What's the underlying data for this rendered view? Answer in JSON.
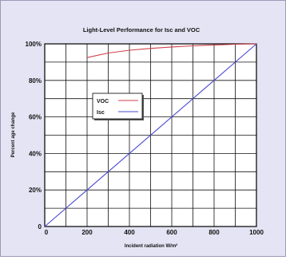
{
  "chart_data": {
    "type": "line",
    "title": "Light-Level Performance for Isc and VOC",
    "xlabel": "Incident radiation W/m²",
    "ylabel": "Percent age change",
    "xlim": [
      0,
      1000
    ],
    "ylim": [
      0,
      100
    ],
    "x_ticks": [
      0,
      200,
      400,
      600,
      800,
      1000
    ],
    "x_tick_labels": [
      "0",
      "200",
      "400",
      "600",
      "800",
      "1000"
    ],
    "y_ticks": [
      0,
      20,
      40,
      60,
      80,
      100
    ],
    "y_tick_labels": [
      "0",
      "20%",
      "40%",
      "60%",
      "80%",
      "100%"
    ],
    "grid": true,
    "grid_step_x": 100,
    "grid_step_y": 10,
    "legend_position": "upper-left",
    "series": [
      {
        "name": "VOC",
        "color": "#d0404a",
        "x": [
          200,
          300,
          400,
          500,
          600,
          700,
          800,
          900,
          1000
        ],
        "values": [
          92.5,
          95,
          96.5,
          97.5,
          98.3,
          98.9,
          99.4,
          99.8,
          100
        ]
      },
      {
        "name": "Isc",
        "color": "#4a4ad0",
        "x": [
          0,
          1000
        ],
        "values": [
          0,
          100
        ]
      }
    ]
  }
}
